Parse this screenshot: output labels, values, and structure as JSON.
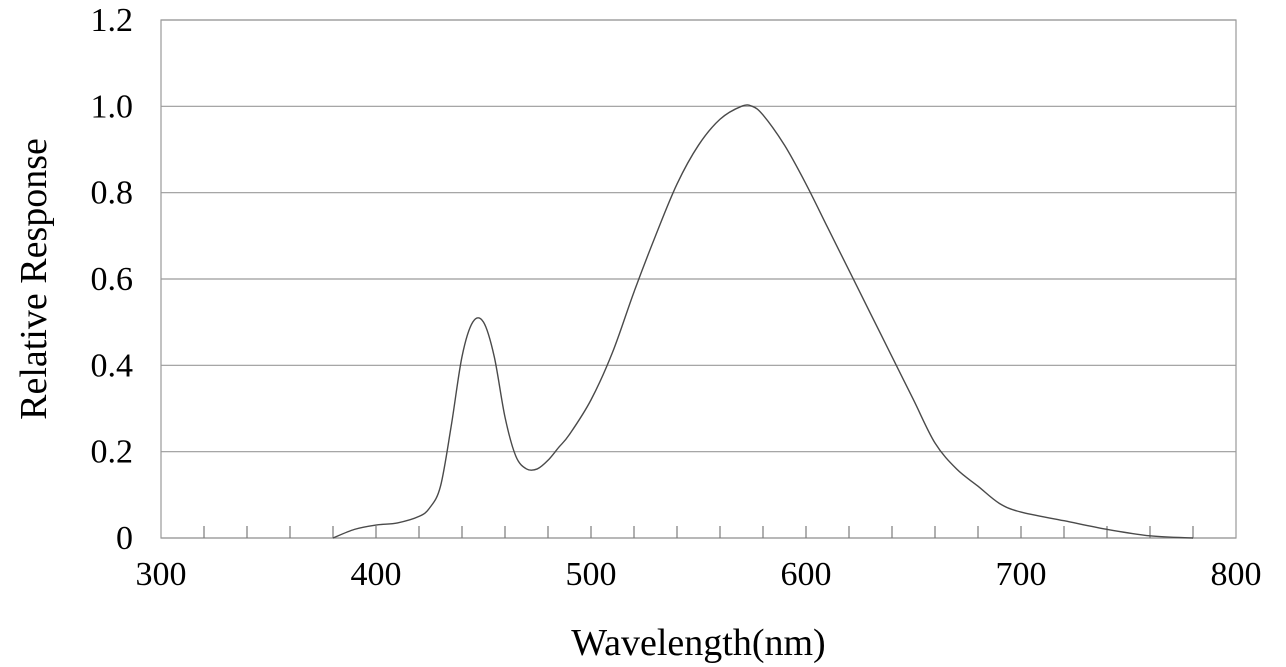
{
  "chart_data": {
    "type": "line",
    "title": "",
    "xlabel": "Wavelength(nm)",
    "ylabel": "Relative Response",
    "xlim": [
      300,
      800
    ],
    "ylim": [
      0,
      1.2
    ],
    "x_ticks": [
      300,
      400,
      500,
      600,
      700,
      800
    ],
    "x_tick_labels": [
      "300",
      "400",
      "500",
      "600",
      "700",
      "800"
    ],
    "y_ticks": [
      0,
      0.2,
      0.4,
      0.6,
      0.8,
      1.0,
      1.2
    ],
    "y_tick_labels": [
      "0",
      "0.2",
      "0.4",
      "0.6",
      "0.8",
      "1.0",
      "1.2"
    ],
    "x_minor_step": 20,
    "grid": "horizontal",
    "line_color": "#4a4a4a",
    "grid_color": "#9a9a9a",
    "series": [
      {
        "x": [
          380,
          390,
          400,
          410,
          420,
          425,
          430,
          435,
          440,
          445,
          450,
          455,
          460,
          465,
          470,
          475,
          480,
          485,
          490,
          500,
          510,
          520,
          530,
          540,
          550,
          560,
          570,
          575,
          580,
          590,
          600,
          610,
          620,
          630,
          640,
          650,
          660,
          670,
          680,
          690,
          700,
          720,
          740,
          760,
          780
        ],
        "y": [
          0.0,
          0.02,
          0.03,
          0.035,
          0.05,
          0.07,
          0.12,
          0.26,
          0.42,
          0.5,
          0.5,
          0.42,
          0.28,
          0.19,
          0.16,
          0.16,
          0.18,
          0.21,
          0.24,
          0.32,
          0.43,
          0.57,
          0.7,
          0.82,
          0.91,
          0.97,
          1.0,
          1.0,
          0.98,
          0.91,
          0.82,
          0.72,
          0.62,
          0.52,
          0.42,
          0.32,
          0.22,
          0.16,
          0.12,
          0.08,
          0.06,
          0.04,
          0.02,
          0.005,
          0.0
        ]
      }
    ]
  }
}
